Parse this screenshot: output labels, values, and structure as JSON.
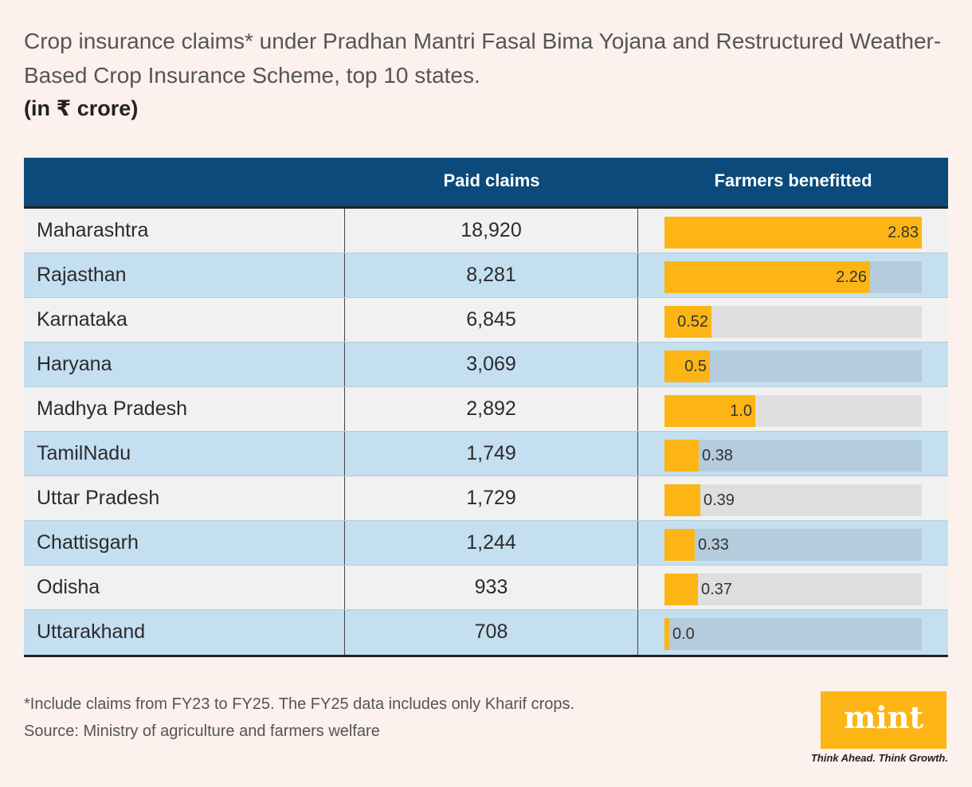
{
  "title": "Crop insurance claims* under Pradhan Mantri Fasal Bima Yojana and Restructured Weather-Based Crop Insurance Scheme, top 10 states.",
  "unit": "(in ₹ crore)",
  "headers": {
    "state": "",
    "paid_claims": "Paid claims",
    "farmers_benefitted": "Farmers benefitted"
  },
  "colors": {
    "header_bg": "#0b4a7a",
    "bar": "#fdb515",
    "row_even": "#c3dff0",
    "row_odd": "#f1f1f1",
    "background": "#fcf1ec"
  },
  "chart_data": {
    "type": "table",
    "title": "Crop insurance claims* under Pradhan Mantri Fasal Bima Yojana and Restructured Weather-Based Crop Insurance Scheme, top 10 states.",
    "columns": [
      "",
      "Paid claims",
      "Farmers benefitted"
    ],
    "bar_max": 2.83,
    "rows": [
      {
        "state": "Maharashtra",
        "paid_claims": "18,920",
        "farmers": 2.83,
        "farmers_label": "2.83"
      },
      {
        "state": "Rajasthan",
        "paid_claims": "8,281",
        "farmers": 2.26,
        "farmers_label": "2.26"
      },
      {
        "state": "Karnataka",
        "paid_claims": "6,845",
        "farmers": 0.52,
        "farmers_label": "0.52"
      },
      {
        "state": "Haryana",
        "paid_claims": "3,069",
        "farmers": 0.5,
        "farmers_label": "0.5"
      },
      {
        "state": "Madhya Pradesh",
        "paid_claims": "2,892",
        "farmers": 1.0,
        "farmers_label": "1.0"
      },
      {
        "state": "TamilNadu",
        "paid_claims": "1,749",
        "farmers": 0.38,
        "farmers_label": "0.38"
      },
      {
        "state": "Uttar Pradesh",
        "paid_claims": "1,729",
        "farmers": 0.39,
        "farmers_label": "0.39"
      },
      {
        "state": "Chattisgarh",
        "paid_claims": "1,244",
        "farmers": 0.33,
        "farmers_label": "0.33"
      },
      {
        "state": "Odisha",
        "paid_claims": "933",
        "farmers": 0.37,
        "farmers_label": "0.37"
      },
      {
        "state": "Uttarakhand",
        "paid_claims": "708",
        "farmers": 0.03,
        "farmers_label": "0.0"
      }
    ]
  },
  "footnote": "*Include claims from FY23 to FY25. The FY25 data includes only Kharif crops.",
  "source": "Source: Ministry of agriculture and farmers welfare",
  "logo": {
    "name": "mint",
    "tagline": "Think Ahead. Think Growth."
  }
}
